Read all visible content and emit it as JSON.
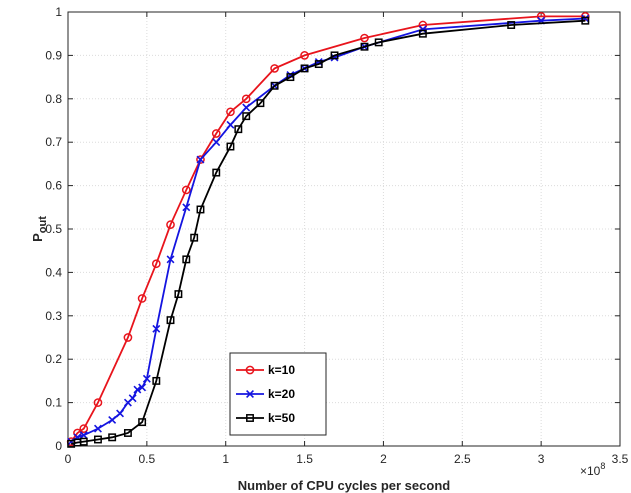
{
  "chart_data": {
    "type": "line",
    "xlabel": "Number of CPU cycles per second",
    "ylabel_main": "P",
    "ylabel_sub": "out",
    "x_exponent_base": "×10",
    "x_exponent_power": "8",
    "xlim": [
      0,
      3.5
    ],
    "ylim": [
      0,
      1
    ],
    "x_ticks": [
      0,
      0.5,
      1,
      1.5,
      2,
      2.5,
      3,
      3.5
    ],
    "x_tick_labels": [
      "0",
      "0.5",
      "1",
      "1.5",
      "2",
      "2.5",
      "3",
      "3.5"
    ],
    "y_ticks": [
      0,
      0.1,
      0.2,
      0.3,
      0.4,
      0.5,
      0.6,
      0.7,
      0.8,
      0.9,
      1
    ],
    "y_tick_labels": [
      "0",
      "0.1",
      "0.2",
      "0.3",
      "0.4",
      "0.5",
      "0.6",
      "0.7",
      "0.8",
      "0.9",
      "1"
    ],
    "grid": true,
    "legend_position": "center-bottom",
    "series": [
      {
        "name": "k=10",
        "color": "#e8141c",
        "marker": "circle",
        "x": [
          0.02,
          0.06,
          0.1,
          0.19,
          0.38,
          0.47,
          0.56,
          0.65,
          0.75,
          0.84,
          0.94,
          1.03,
          1.13,
          1.31,
          1.5,
          1.88,
          2.25,
          3.0,
          3.28
        ],
        "y": [
          0.01,
          0.03,
          0.04,
          0.1,
          0.25,
          0.34,
          0.42,
          0.51,
          0.59,
          0.66,
          0.72,
          0.77,
          0.8,
          0.87,
          0.9,
          0.94,
          0.97,
          0.99,
          0.99
        ]
      },
      {
        "name": "k=20",
        "color": "#1414e0",
        "marker": "x",
        "x": [
          0.02,
          0.06,
          0.1,
          0.19,
          0.28,
          0.33,
          0.38,
          0.41,
          0.44,
          0.47,
          0.5,
          0.56,
          0.65,
          0.75,
          0.84,
          0.94,
          1.03,
          1.13,
          1.31,
          1.41,
          1.5,
          1.59,
          1.69,
          1.88,
          2.25,
          3.0,
          3.28
        ],
        "y": [
          0.01,
          0.02,
          0.025,
          0.04,
          0.06,
          0.075,
          0.1,
          0.11,
          0.13,
          0.135,
          0.155,
          0.27,
          0.43,
          0.55,
          0.66,
          0.7,
          0.74,
          0.78,
          0.83,
          0.855,
          0.87,
          0.885,
          0.895,
          0.92,
          0.96,
          0.98,
          0.985
        ]
      },
      {
        "name": "k=50",
        "color": "#000000",
        "marker": "square",
        "x": [
          0.02,
          0.06,
          0.1,
          0.19,
          0.28,
          0.38,
          0.47,
          0.56,
          0.65,
          0.7,
          0.75,
          0.8,
          0.84,
          0.94,
          1.03,
          1.08,
          1.13,
          1.22,
          1.31,
          1.41,
          1.5,
          1.59,
          1.69,
          1.88,
          1.97,
          2.25,
          2.81,
          3.28
        ],
        "y": [
          0.005,
          0.008,
          0.01,
          0.015,
          0.02,
          0.03,
          0.055,
          0.15,
          0.29,
          0.35,
          0.43,
          0.48,
          0.545,
          0.63,
          0.69,
          0.73,
          0.76,
          0.79,
          0.83,
          0.85,
          0.87,
          0.88,
          0.9,
          0.92,
          0.93,
          0.95,
          0.97,
          0.98
        ]
      }
    ]
  }
}
